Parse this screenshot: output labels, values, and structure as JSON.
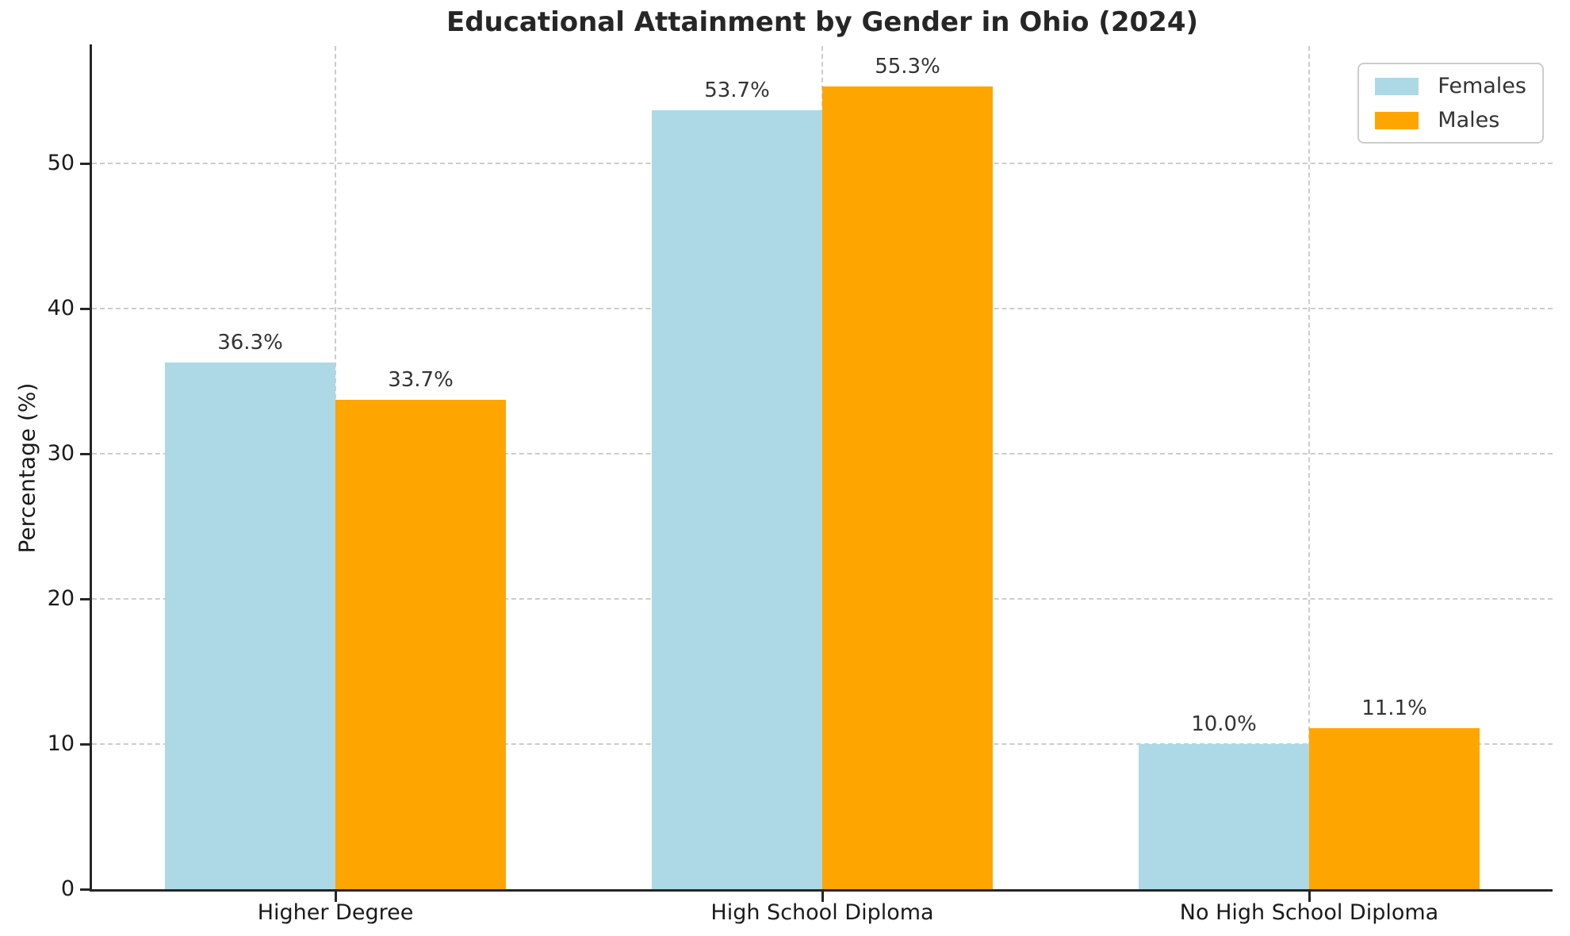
{
  "chart_data": {
    "type": "bar",
    "title": "Educational Attainment by Gender in Ohio (2024)",
    "xlabel": "",
    "ylabel": "Percentage (%)",
    "categories": [
      "Higher Degree",
      "High School Diploma",
      "No High School Diploma"
    ],
    "series": [
      {
        "name": "Females",
        "color": "#ADD8E6",
        "values": [
          36.3,
          53.7,
          10.0
        ],
        "labels": [
          "36.3%",
          "53.7%",
          "10.0%"
        ]
      },
      {
        "name": "Males",
        "color": "#FFA500",
        "values": [
          33.7,
          55.3,
          11.1
        ],
        "labels": [
          "33.7%",
          "55.3%",
          "11.1%"
        ]
      }
    ],
    "yticks": [
      0,
      10,
      20,
      30,
      40,
      50
    ],
    "ytick_labels": [
      "0",
      "10",
      "20",
      "30",
      "40",
      "50"
    ],
    "ylim": [
      0,
      58.1
    ],
    "bar_width_fraction": 0.35,
    "grid": "dashed, horizontal at yticks and vertical at category centers",
    "legend_position": "upper right",
    "colors": {
      "females": "#ADD8E6",
      "males": "#FFA500",
      "grid": "#cccccc",
      "axis": "#262626",
      "text": "#1a1a1a",
      "value_label_text": "#333333",
      "legend_border": "#cccccc",
      "background": "#ffffff"
    }
  }
}
